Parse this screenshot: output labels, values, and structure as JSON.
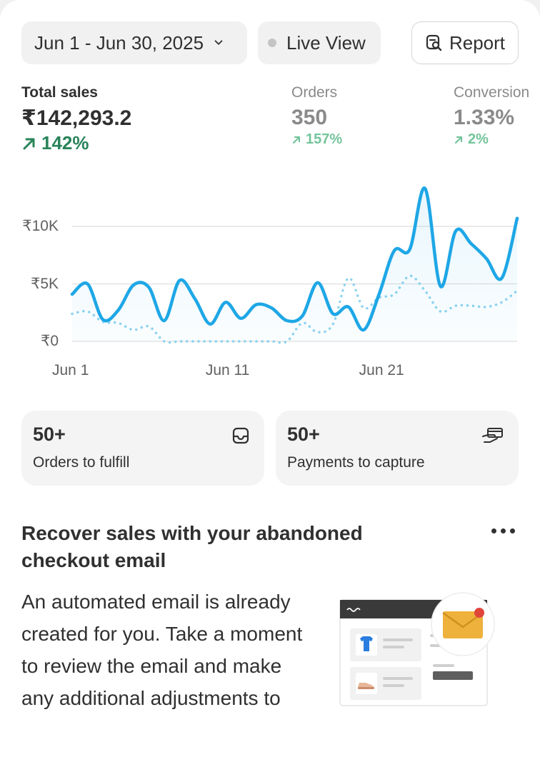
{
  "header": {
    "date_range": "Jun 1 - Jun 30, 2025",
    "live_view": "Live View",
    "report": "Report"
  },
  "metrics": [
    {
      "label": "Total sales",
      "value": "₹142,293.2",
      "delta": "142%"
    },
    {
      "label": "Orders",
      "value": "350",
      "delta": "157%"
    },
    {
      "label": "Conversion",
      "value": "1.33%",
      "delta": "2%"
    }
  ],
  "chart_data": {
    "type": "line",
    "y_tick_labels": [
      "₹0",
      "₹5K",
      "₹10K"
    ],
    "y_ticks": [
      0,
      5000,
      10000
    ],
    "ylim": [
      0,
      14500
    ],
    "x_tick_labels": [
      "Jun 1",
      "Jun 11",
      "Jun 21"
    ],
    "x_ticks": [
      1,
      11,
      21
    ],
    "xlim": [
      1,
      30
    ],
    "grid": true,
    "series": [
      {
        "style": "solid",
        "color": "#1ea7e6",
        "x": [
          1,
          2,
          3,
          4,
          5,
          6,
          7,
          8,
          9,
          10,
          11,
          12,
          13,
          14,
          15,
          16,
          17,
          18,
          19,
          20,
          21,
          22,
          23,
          24,
          25,
          26,
          27,
          28,
          29,
          30
        ],
        "y": [
          4100,
          5000,
          1900,
          2700,
          4900,
          4700,
          1800,
          5300,
          3700,
          1500,
          3400,
          2000,
          3200,
          2900,
          1800,
          2200,
          5100,
          2400,
          3000,
          1000,
          4100,
          7900,
          8000,
          13300,
          4800,
          9600,
          8500,
          7200,
          5500,
          10700
        ]
      },
      {
        "style": "dotted",
        "color": "#8fd3f0",
        "x": [
          1,
          2,
          3,
          4,
          5,
          6,
          7,
          8,
          9,
          10,
          11,
          12,
          13,
          14,
          15,
          16,
          17,
          18,
          19,
          20,
          21,
          22,
          23,
          24,
          25,
          26,
          27,
          28,
          29,
          30
        ],
        "y": [
          2400,
          2600,
          1700,
          1600,
          1000,
          1300,
          0,
          0,
          0,
          0,
          0,
          0,
          0,
          0,
          0,
          1600,
          800,
          1500,
          5500,
          2900,
          3800,
          4100,
          5700,
          4400,
          2600,
          3100,
          3100,
          3000,
          3400,
          4400
        ]
      }
    ]
  },
  "tiles": [
    {
      "count": "50+",
      "label": "Orders to fulfill",
      "icon": "inbox-icon"
    },
    {
      "count": "50+",
      "label": "Payments to capture",
      "icon": "hand-card-icon"
    }
  ],
  "recover": {
    "title": "Recover sales with your abandoned checkout email",
    "body": "An automated email is already created for you. Take a moment to review the email and make any additional adjustments to"
  },
  "colors": {
    "accent_green": "#29845a",
    "line_blue": "#1ea7e6",
    "envelope": "#eeb13c"
  }
}
